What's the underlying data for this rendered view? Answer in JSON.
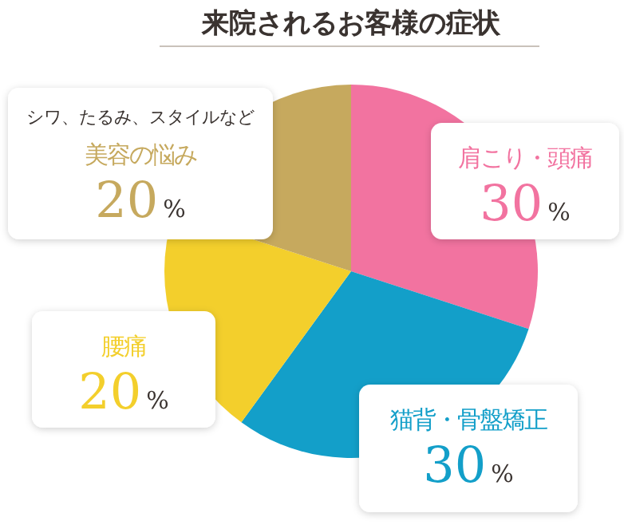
{
  "chart_data": {
    "type": "pie",
    "title": "来院されるお客様の症状",
    "categories": [
      "肩こり・頭痛",
      "猫背・骨盤矯正",
      "腰痛",
      "美容の悩み"
    ],
    "values": [
      30,
      30,
      20,
      20
    ],
    "value_labels": [
      "30%",
      "30%",
      "20%",
      "20%"
    ],
    "colors": [
      "#f273a0",
      "#139fc9",
      "#f3cf2c",
      "#c6a95e"
    ],
    "annotations": [
      "シワ、たるみ、スタイルなど"
    ]
  }
}
